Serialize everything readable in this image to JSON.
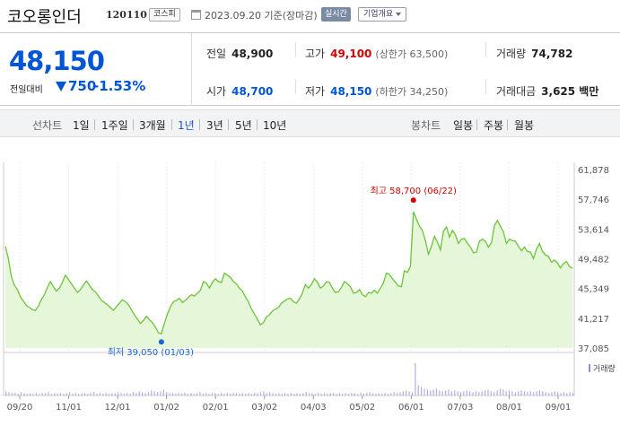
{
  "header": {
    "company": "코오롱인더",
    "code": "120110",
    "market": "코스피",
    "date": "2023.09.20 기준(장마감)",
    "realtime": "실시간",
    "overview": "기업개요"
  },
  "quote": {
    "current": "48,150",
    "change_label": "전일대비",
    "change": "750",
    "change_rate": "-1.53%",
    "prev_label": "전일",
    "prev": "48,900",
    "high_label": "고가",
    "high": "49,100",
    "upper_limit": "(상한가 63,500)",
    "volume_label": "거래량",
    "volume": "74,782",
    "open_label": "시가",
    "open": "48,700",
    "low_label": "저가",
    "low": "48,150",
    "lower_limit": "(하한가 34,250)",
    "amount_label": "거래대금",
    "amount": "3,625 백만"
  },
  "periods": {
    "line_label": "선차트",
    "items": [
      "1일",
      "1주일",
      "3개월",
      "1년",
      "3년",
      "5년",
      "10년"
    ],
    "active": "1년",
    "candle_label": "봉차트",
    "candle_items": [
      "일봉",
      "주봉",
      "월봉"
    ]
  },
  "colors": {
    "up": "#d60000",
    "down": "#0055d4",
    "line": "#6bc43a",
    "fill": "#e6f6d8"
  },
  "chart_data": {
    "type": "area",
    "x_ticks": [
      "09/20",
      "11/01",
      "12/01",
      "01/02",
      "02/01",
      "03/02",
      "04/03",
      "05/02",
      "06/01",
      "07/03",
      "08/01",
      "09/01"
    ],
    "y_ticks": [
      "61,878",
      "57,746",
      "53,614",
      "49,482",
      "45,349",
      "41,217",
      "37,085"
    ],
    "ylim": [
      37085,
      61878
    ],
    "high_annotation": "최고 58,700 (06/22)",
    "low_annotation": "최저 39,050 (01/03)",
    "volume_label": "거래량",
    "series": [
      {
        "values": [
          51200,
          49500,
          47000,
          45800,
          45200,
          44200,
          43600,
          43000,
          42700,
          42400,
          42300,
          42900,
          43800,
          44500,
          45500,
          46300,
          45600,
          45000,
          45400,
          46200,
          47200,
          46600,
          46000,
          45400,
          44800,
          45200,
          45800,
          46400,
          45800,
          45200,
          44900,
          44300,
          43700,
          43400,
          43100,
          42700,
          42300,
          42800,
          43300,
          43800,
          43500,
          43100,
          42400,
          41700,
          41100,
          40500,
          40900,
          41500,
          41000,
          40600,
          40000,
          39200,
          39050,
          40500,
          41800,
          42800,
          43500,
          43700,
          44000,
          43400,
          43700,
          44100,
          44500,
          44300,
          44700,
          45100,
          46300,
          46100,
          45400,
          46200,
          46700,
          46300,
          46200,
          47500,
          47200,
          46900,
          46300,
          46000,
          45400,
          45000,
          44200,
          43500,
          42500,
          41800,
          41100,
          40300,
          40600,
          41400,
          41700,
          42200,
          42500,
          42700,
          43300,
          43600,
          43900,
          44000,
          43500,
          43300,
          43900,
          44700,
          45900,
          45400,
          45900,
          46700,
          46200,
          45400,
          45700,
          46300,
          46200,
          45400,
          44800,
          44900,
          45500,
          46300,
          46000,
          45600,
          44700,
          44800,
          45200,
          44500,
          44200,
          44800,
          44700,
          45100,
          44700,
          45400,
          46100,
          47500,
          47300,
          46700,
          46200,
          45700,
          45600,
          47800,
          47600,
          48400,
          56000,
          55000,
          54000,
          53400,
          52000,
          50100,
          51200,
          52600,
          51800,
          50700,
          53300,
          53900,
          52500,
          53400,
          52800,
          51600,
          52200,
          52300,
          51600,
          51100,
          50300,
          50400,
          51900,
          52200,
          51900,
          51100,
          51700,
          54100,
          54800,
          54000,
          53200,
          51600,
          52200,
          52000,
          51900,
          51200,
          50600,
          51100,
          50500,
          50400,
          49500,
          50800,
          51600,
          50500,
          50000,
          49800,
          49000,
          49300,
          48900,
          48200,
          48800,
          49100,
          48400,
          48150
        ]
      }
    ],
    "volume": [
      5,
      4,
      3,
      3,
      2,
      4,
      3,
      2,
      3,
      2,
      3,
      2,
      3,
      3,
      4,
      2,
      3,
      2,
      3,
      2,
      3,
      4,
      2,
      3,
      2,
      3,
      3,
      2,
      3,
      4,
      2,
      3,
      2,
      3,
      2,
      3,
      3,
      4,
      3,
      2,
      3,
      2,
      4,
      3,
      5,
      4,
      3,
      4,
      6,
      5,
      4,
      5,
      7,
      4,
      3,
      3,
      2,
      3,
      2,
      3,
      2,
      3,
      2,
      3,
      4,
      2,
      3,
      2,
      3,
      3,
      2,
      3,
      2,
      3,
      2,
      3,
      3,
      2,
      3,
      2,
      3,
      2,
      3,
      3,
      4,
      5,
      3,
      4,
      3,
      2,
      3,
      2,
      3,
      2,
      3,
      2,
      3,
      2,
      3,
      4,
      3,
      3,
      2,
      3,
      2,
      3,
      2,
      3,
      3,
      2,
      3,
      2,
      3,
      2,
      3,
      3,
      2,
      3,
      2,
      3,
      4,
      3,
      2,
      3,
      2,
      3,
      2,
      3,
      4,
      3,
      4,
      5,
      6,
      5,
      4,
      38,
      12,
      10,
      8,
      7,
      6,
      7,
      8,
      6,
      5,
      6,
      7,
      5,
      6,
      5,
      4,
      5,
      6,
      5,
      4,
      5,
      4,
      5,
      6,
      7,
      5,
      4,
      6,
      8,
      7,
      5,
      6,
      5,
      4,
      5,
      6,
      5,
      4,
      5,
      4,
      5,
      6,
      5,
      4,
      3,
      4,
      5,
      4,
      3,
      4,
      3,
      4,
      3
    ]
  }
}
